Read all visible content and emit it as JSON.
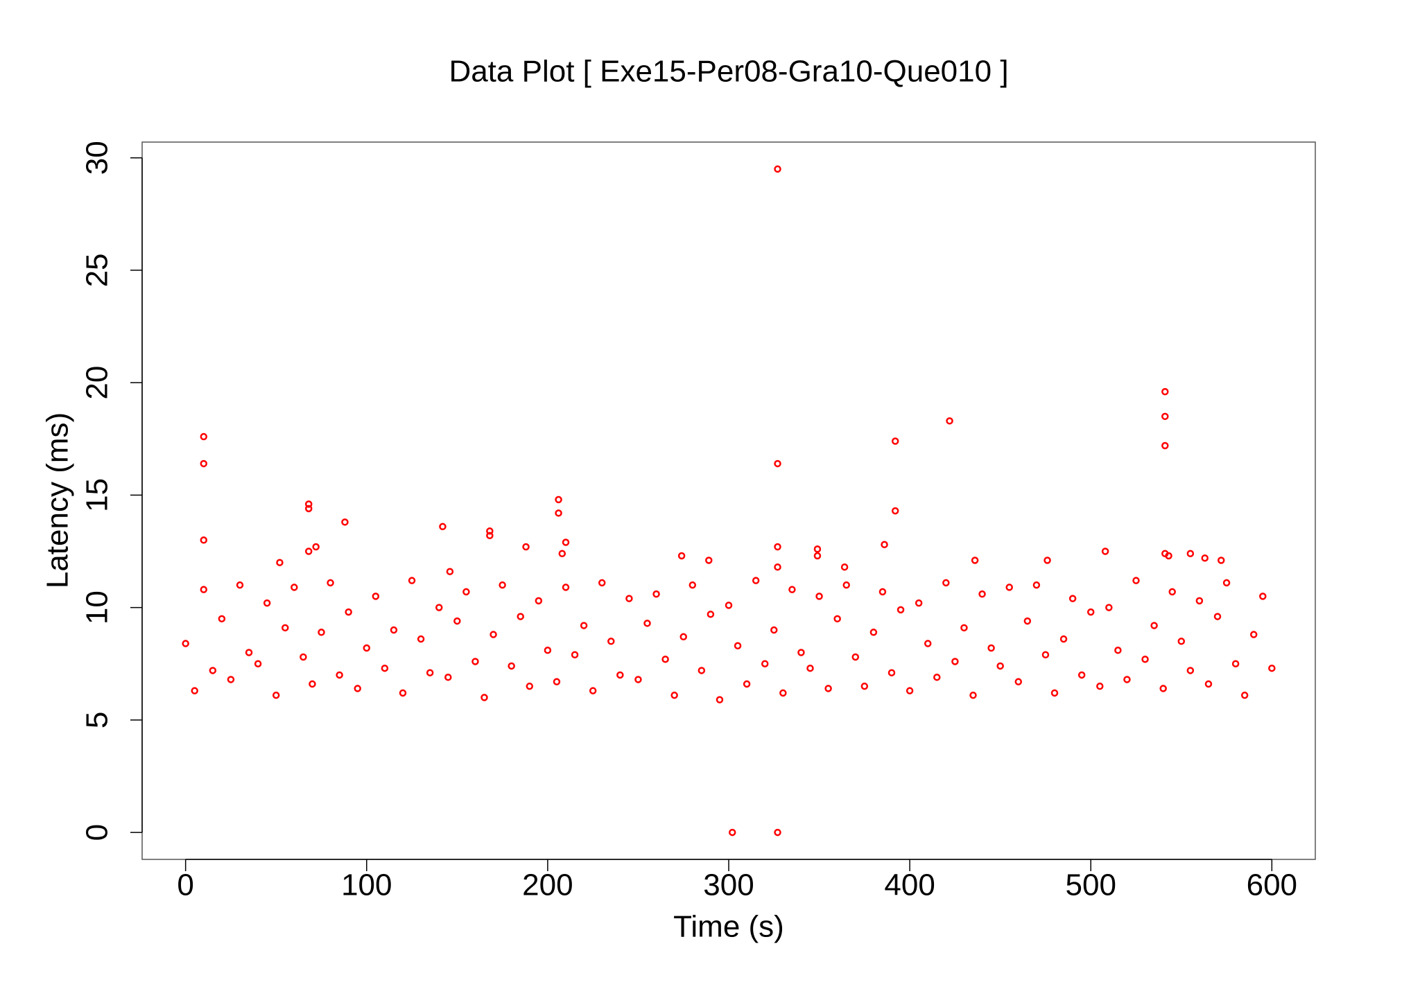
{
  "chart_data": {
    "type": "scatter",
    "title": "Data Plot [ Exe15-Per08-Gra10-Que010 ]",
    "x_label": "Time (s)",
    "y_label": "Latency (ms)",
    "color": "#ff0000",
    "xlim": [
      -24,
      624
    ],
    "ylim": [
      -1.2,
      30.7
    ],
    "xticks": [
      0,
      100,
      200,
      300,
      400,
      500,
      600
    ],
    "yticks": [
      0,
      5,
      10,
      15,
      20,
      25,
      30
    ],
    "x": [
      0,
      5,
      10,
      15,
      20,
      25,
      30,
      35,
      40,
      45,
      50,
      55,
      60,
      65,
      70,
      75,
      80,
      85,
      90,
      95,
      100,
      105,
      110,
      115,
      120,
      125,
      130,
      135,
      140,
      145,
      150,
      155,
      160,
      165,
      170,
      175,
      180,
      185,
      190,
      195,
      200,
      205,
      210,
      215,
      220,
      225,
      230,
      235,
      240,
      245,
      250,
      255,
      260,
      265,
      270,
      275,
      280,
      285,
      290,
      295,
      300,
      305,
      310,
      315,
      320,
      325,
      330,
      335,
      340,
      345,
      350,
      355,
      360,
      365,
      370,
      375,
      380,
      385,
      390,
      395,
      400,
      405,
      410,
      415,
      420,
      425,
      430,
      435,
      440,
      445,
      450,
      455,
      460,
      465,
      470,
      475,
      480,
      485,
      490,
      495,
      500,
      505,
      510,
      515,
      520,
      525,
      530,
      535,
      540,
      545,
      550,
      555,
      560,
      565,
      570,
      575,
      580,
      585,
      590,
      595,
      600,
      10,
      10,
      10,
      68,
      68,
      68,
      72,
      88,
      52,
      142,
      146,
      168,
      168,
      188,
      206,
      206,
      208,
      210,
      274,
      289,
      302,
      327,
      327,
      327,
      327,
      327,
      349,
      349,
      364,
      386,
      392,
      392,
      422,
      436,
      476,
      508,
      541,
      541,
      541,
      541,
      543,
      555,
      563,
      572
    ],
    "values": [
      8.4,
      6.3,
      10.8,
      7.2,
      9.5,
      6.8,
      11.0,
      8.0,
      7.5,
      10.2,
      6.1,
      9.1,
      10.9,
      7.8,
      6.6,
      8.9,
      11.1,
      7.0,
      9.8,
      6.4,
      8.2,
      10.5,
      7.3,
      9.0,
      6.2,
      11.2,
      8.6,
      7.1,
      10.0,
      6.9,
      9.4,
      10.7,
      7.6,
      6.0,
      8.8,
      11.0,
      7.4,
      9.6,
      6.5,
      10.3,
      8.1,
      6.7,
      10.9,
      7.9,
      9.2,
      6.3,
      11.1,
      8.5,
      7.0,
      10.4,
      6.8,
      9.3,
      10.6,
      7.7,
      6.1,
      8.7,
      11.0,
      7.2,
      9.7,
      5.9,
      10.1,
      8.3,
      6.6,
      11.2,
      7.5,
      9.0,
      6.2,
      10.8,
      8.0,
      7.3,
      10.5,
      6.4,
      9.5,
      11.0,
      7.8,
      6.5,
      8.9,
      10.7,
      7.1,
      9.9,
      6.3,
      10.2,
      8.4,
      6.9,
      11.1,
      7.6,
      9.1,
      6.1,
      10.6,
      8.2,
      7.4,
      10.9,
      6.7,
      9.4,
      11.0,
      7.9,
      6.2,
      8.6,
      10.4,
      7.0,
      9.8,
      6.5,
      10.0,
      8.1,
      6.8,
      11.2,
      7.7,
      9.2,
      6.4,
      10.7,
      8.5,
      7.2,
      10.3,
      6.6,
      9.6,
      11.1,
      7.5,
      6.1,
      8.8,
      10.5,
      7.3,
      17.6,
      16.4,
      13,
      14.6,
      14.4,
      12.5,
      12.7,
      13.8,
      12,
      13.6,
      11.6,
      13.4,
      13.2,
      12.7,
      14.8,
      14.2,
      12.4,
      12.9,
      12.3,
      12.1,
      0,
      29.5,
      16.4,
      12.7,
      11.8,
      0,
      12.6,
      12.3,
      11.8,
      12.8,
      17.4,
      14.3,
      18.3,
      12.1,
      12.1,
      12.5,
      19.6,
      18.5,
      17.2,
      12.4,
      12.3,
      12.4,
      12.2,
      12.1
    ]
  }
}
